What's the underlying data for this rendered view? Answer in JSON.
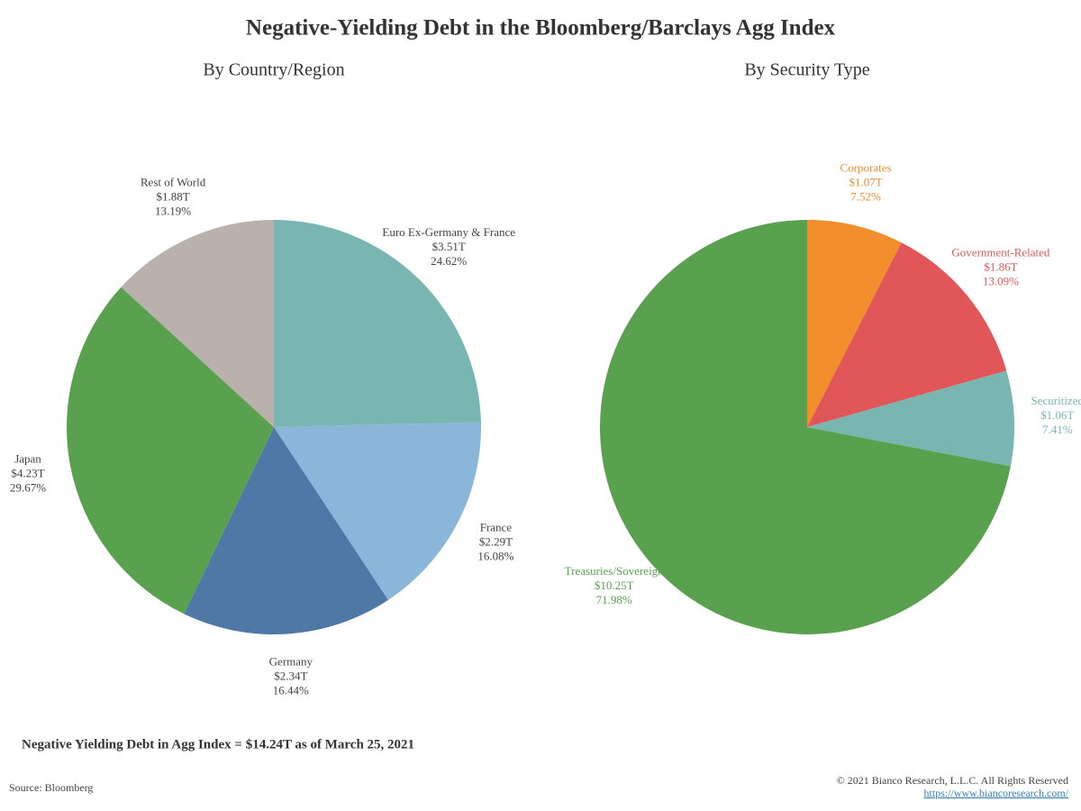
{
  "title": "Negative-Yielding Debt in the Bloomberg/Barclays Agg Index",
  "chart_data": [
    {
      "type": "pie",
      "subtitle": "By Country/Region",
      "categories": [
        "Euro Ex-Germany & France",
        "France",
        "Germany",
        "Japan",
        "Rest of World"
      ],
      "values": [
        3.51,
        2.29,
        2.34,
        4.23,
        1.88
      ],
      "value_labels": [
        "$3.51T",
        "$2.29T",
        "$2.34T",
        "$4.23T",
        "$1.88T"
      ],
      "shares": [
        24.62,
        16.08,
        16.44,
        29.67,
        13.19
      ],
      "share_labels": [
        "24.62%",
        "16.08%",
        "16.44%",
        "29.67%",
        "13.19%"
      ],
      "colors": [
        "#79b6b1",
        "#8ab6d9",
        "#4e78a6",
        "#59a14f",
        "#bab0ac"
      ],
      "label_color": "#444444"
    },
    {
      "type": "pie",
      "subtitle": "By Security Type",
      "categories": [
        "Corporates",
        "Government-Related",
        "Securitized",
        "Treasuries/Sovereign"
      ],
      "values": [
        1.07,
        1.86,
        1.06,
        10.25
      ],
      "value_labels": [
        "$1.07T",
        "$1.86T",
        "$1.06T",
        "$10.25T"
      ],
      "shares": [
        7.52,
        13.09,
        7.41,
        71.98
      ],
      "share_labels": [
        "7.52%",
        "13.09%",
        "7.41%",
        "71.98%"
      ],
      "colors": [
        "#f28e2b",
        "#e15759",
        "#79b6b1",
        "#59a14f"
      ]
    }
  ],
  "note": "Negative Yielding Debt in Agg Index = $14.24T as of March 25, 2021",
  "source": "Source: Bloomberg",
  "copyright": "© 2021 Bianco Research, L.L.C. All Rights Reserved",
  "url": "https://www.biancoresearch.com/"
}
